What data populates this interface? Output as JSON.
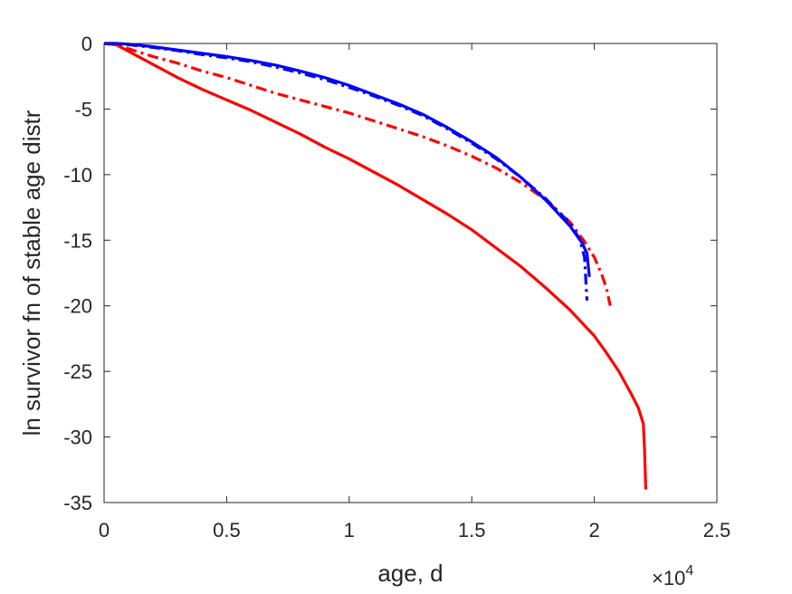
{
  "chart_data": {
    "type": "line",
    "xlabel": "age, d",
    "ylabel": "ln survivor fn of stable age distr",
    "x_exponent_label": "×10",
    "x_exponent_power": "4",
    "x_multiplier": 10000,
    "xlim": [
      0,
      25000
    ],
    "ylim": [
      -35,
      0
    ],
    "x_ticks": [
      0,
      5000,
      10000,
      15000,
      20000,
      25000
    ],
    "x_tick_labels": [
      "0",
      "0.5",
      "1",
      "1.5",
      "2",
      "2.5"
    ],
    "y_ticks": [
      0,
      -5,
      -10,
      -15,
      -20,
      -25,
      -30,
      -35
    ],
    "y_tick_labels": [
      "0",
      "-5",
      "-10",
      "-15",
      "-20",
      "-25",
      "-30",
      "-35"
    ],
    "grid": false,
    "series": [
      {
        "color": "#ff0000",
        "style": "solid",
        "x": [
          0,
          500,
          1000,
          2000,
          3000,
          4000,
          5000,
          6000,
          7000,
          8000,
          9000,
          10000,
          11000,
          12000,
          13000,
          14000,
          15000,
          16000,
          17000,
          18000,
          19000,
          20000,
          20500,
          21000,
          21500,
          21800,
          22000,
          22050,
          22100
        ],
        "y": [
          0,
          -0.1,
          -0.6,
          -1.6,
          -2.6,
          -3.5,
          -4.3,
          -5.1,
          -6.0,
          -6.9,
          -7.9,
          -8.8,
          -9.8,
          -10.8,
          -11.9,
          -13.0,
          -14.2,
          -15.6,
          -17.0,
          -18.6,
          -20.3,
          -22.3,
          -23.6,
          -25.0,
          -26.7,
          -27.8,
          -29.0,
          -31.0,
          -34.0
        ]
      },
      {
        "color": "#ff0000",
        "style": "dashdot",
        "x": [
          0,
          500,
          1000,
          2000,
          3000,
          4000,
          5000,
          6000,
          7000,
          8000,
          9000,
          10000,
          11000,
          12000,
          13000,
          14000,
          15000,
          16000,
          17000,
          18000,
          19000,
          19600,
          20000,
          20300,
          20500,
          20650
        ],
        "y": [
          0,
          -0.1,
          -0.4,
          -1.0,
          -1.5,
          -2.1,
          -2.6,
          -3.2,
          -3.8,
          -4.3,
          -4.8,
          -5.3,
          -5.9,
          -6.5,
          -7.1,
          -7.8,
          -8.6,
          -9.5,
          -10.6,
          -11.9,
          -13.6,
          -15.1,
          -16.3,
          -17.6,
          -18.7,
          -20.0
        ]
      },
      {
        "color": "#0000ff",
        "style": "solid",
        "x": [
          0,
          500,
          1000,
          2000,
          3000,
          4000,
          5000,
          6000,
          7000,
          8000,
          9000,
          10000,
          11000,
          12000,
          13000,
          14000,
          15000,
          16000,
          17000,
          18000,
          19000,
          19500,
          19700,
          19800
        ],
        "y": [
          0,
          0,
          -0.05,
          -0.25,
          -0.5,
          -0.75,
          -1.0,
          -1.3,
          -1.65,
          -2.1,
          -2.6,
          -3.2,
          -3.9,
          -4.6,
          -5.4,
          -6.4,
          -7.5,
          -8.7,
          -10.2,
          -11.9,
          -13.9,
          -15.2,
          -16.0,
          -17.8
        ]
      },
      {
        "color": "#0000ff",
        "style": "dashdot",
        "x": [
          0,
          500,
          1000,
          2000,
          3000,
          4000,
          5000,
          6000,
          7000,
          8000,
          9000,
          10000,
          11000,
          12000,
          13000,
          14000,
          15000,
          16000,
          17000,
          18000,
          19000,
          19400,
          19600,
          19700
        ],
        "y": [
          0,
          0,
          -0.1,
          -0.3,
          -0.55,
          -0.85,
          -1.1,
          -1.4,
          -1.8,
          -2.25,
          -2.75,
          -3.35,
          -4.0,
          -4.7,
          -5.5,
          -6.5,
          -7.6,
          -8.8,
          -10.2,
          -11.8,
          -13.7,
          -14.9,
          -16.3,
          -19.6
        ]
      }
    ]
  }
}
